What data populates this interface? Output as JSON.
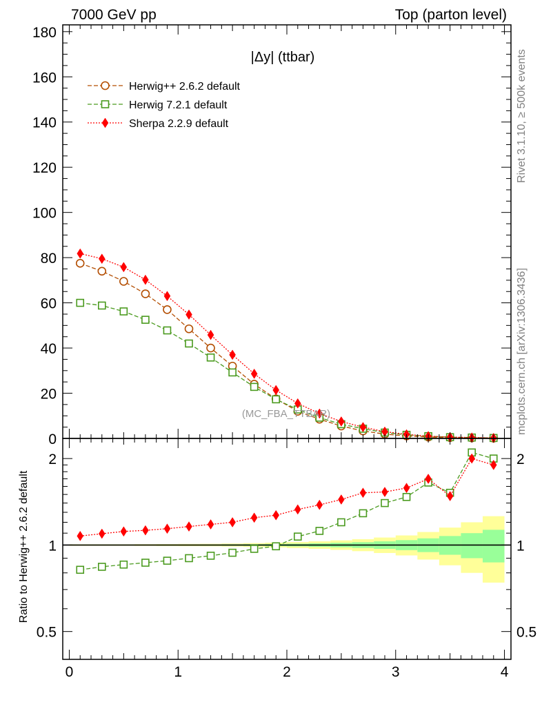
{
  "header": {
    "left": "7000 GeV pp",
    "right": "Top (parton level)"
  },
  "side_labels": {
    "rivet": "Rivet 3.1.10, ≥ 500k events",
    "mcplots": "mcplots.cern.ch [arXiv:1306.3436]"
  },
  "plot_label": "|Δy| (ttbar)",
  "analysis_label": "(MC_FBA_TTBAR)",
  "ratio_ylabel": "Ratio to Herwig++ 2.6.2 default",
  "colors": {
    "herwigpp": "#b34d00",
    "herwig7": "#4a9a1e",
    "sherpa": "#ff0000",
    "band_inner": "#99ff99",
    "band_outer": "#ffff99"
  },
  "chart_data": {
    "type": "line",
    "x": [
      0.1,
      0.3,
      0.5,
      0.7,
      0.9,
      1.1,
      1.3,
      1.5,
      1.7,
      1.9,
      2.1,
      2.3,
      2.5,
      2.7,
      2.9,
      3.1,
      3.3,
      3.5,
      3.7,
      3.9
    ],
    "main": {
      "xlim": [
        -0.06,
        4.06
      ],
      "ylim": [
        0,
        183
      ],
      "yticks": [
        0,
        20,
        40,
        60,
        80,
        100,
        120,
        140,
        160,
        180
      ],
      "series": [
        {
          "name": "Herwig++ 2.6.2 default",
          "marker": "circle",
          "color_key": "herwigpp",
          "values": [
            77.5,
            74,
            69.5,
            64,
            57,
            48.5,
            40,
            32,
            24,
            17.5,
            12,
            8.5,
            5.5,
            3.3,
            1.9,
            1.1,
            0.6,
            0.35,
            0.2,
            0.1
          ]
        },
        {
          "name": "Herwig 7.2.1 default",
          "marker": "square",
          "color_key": "herwig7",
          "values": [
            60,
            58.8,
            56.2,
            52.5,
            47.8,
            42,
            35.8,
            29.2,
            22.8,
            17.3,
            12.8,
            9.2,
            6.3,
            4.3,
            2.6,
            1.6,
            1.0,
            0.55,
            0.4,
            0.2
          ]
        },
        {
          "name": "Sherpa 2.2.9 default",
          "marker": "diamond",
          "color_key": "sherpa",
          "values": [
            81.8,
            79.5,
            75.8,
            70.2,
            63,
            54.8,
            45.8,
            37,
            28.6,
            21.4,
            15.5,
            11,
            7.5,
            5.0,
            3.0,
            1.8,
            1.0,
            0.6,
            0.4,
            0.2
          ]
        }
      ]
    },
    "ratio": {
      "ylim": [
        0.4,
        2.35
      ],
      "scale": "log",
      "yticks": [
        0.5,
        1,
        2
      ],
      "series": [
        {
          "name": "Herwig 7.2.1 default",
          "color_key": "herwig7",
          "values": [
            0.82,
            0.84,
            0.855,
            0.868,
            0.882,
            0.9,
            0.918,
            0.94,
            0.97,
            0.99,
            1.07,
            1.12,
            1.2,
            1.29,
            1.4,
            1.47,
            1.65,
            1.52,
            2.1,
            2.0
          ]
        },
        {
          "name": "Sherpa 2.2.9 default",
          "color_key": "sherpa",
          "values": [
            1.075,
            1.095,
            1.115,
            1.125,
            1.14,
            1.16,
            1.18,
            1.2,
            1.245,
            1.27,
            1.33,
            1.38,
            1.44,
            1.52,
            1.53,
            1.58,
            1.7,
            1.48,
            2.0,
            1.9
          ]
        }
      ],
      "band_inner": [
        0.003,
        0.003,
        0.003,
        0.003,
        0.004,
        0.004,
        0.005,
        0.006,
        0.007,
        0.009,
        0.011,
        0.014,
        0.018,
        0.023,
        0.03,
        0.04,
        0.055,
        0.075,
        0.1,
        0.13
      ],
      "band_outer": [
        0.006,
        0.006,
        0.006,
        0.007,
        0.008,
        0.009,
        0.01,
        0.012,
        0.015,
        0.019,
        0.024,
        0.03,
        0.038,
        0.048,
        0.062,
        0.08,
        0.11,
        0.15,
        0.2,
        0.26
      ]
    },
    "xticks": [
      0,
      1,
      2,
      3,
      4
    ]
  }
}
